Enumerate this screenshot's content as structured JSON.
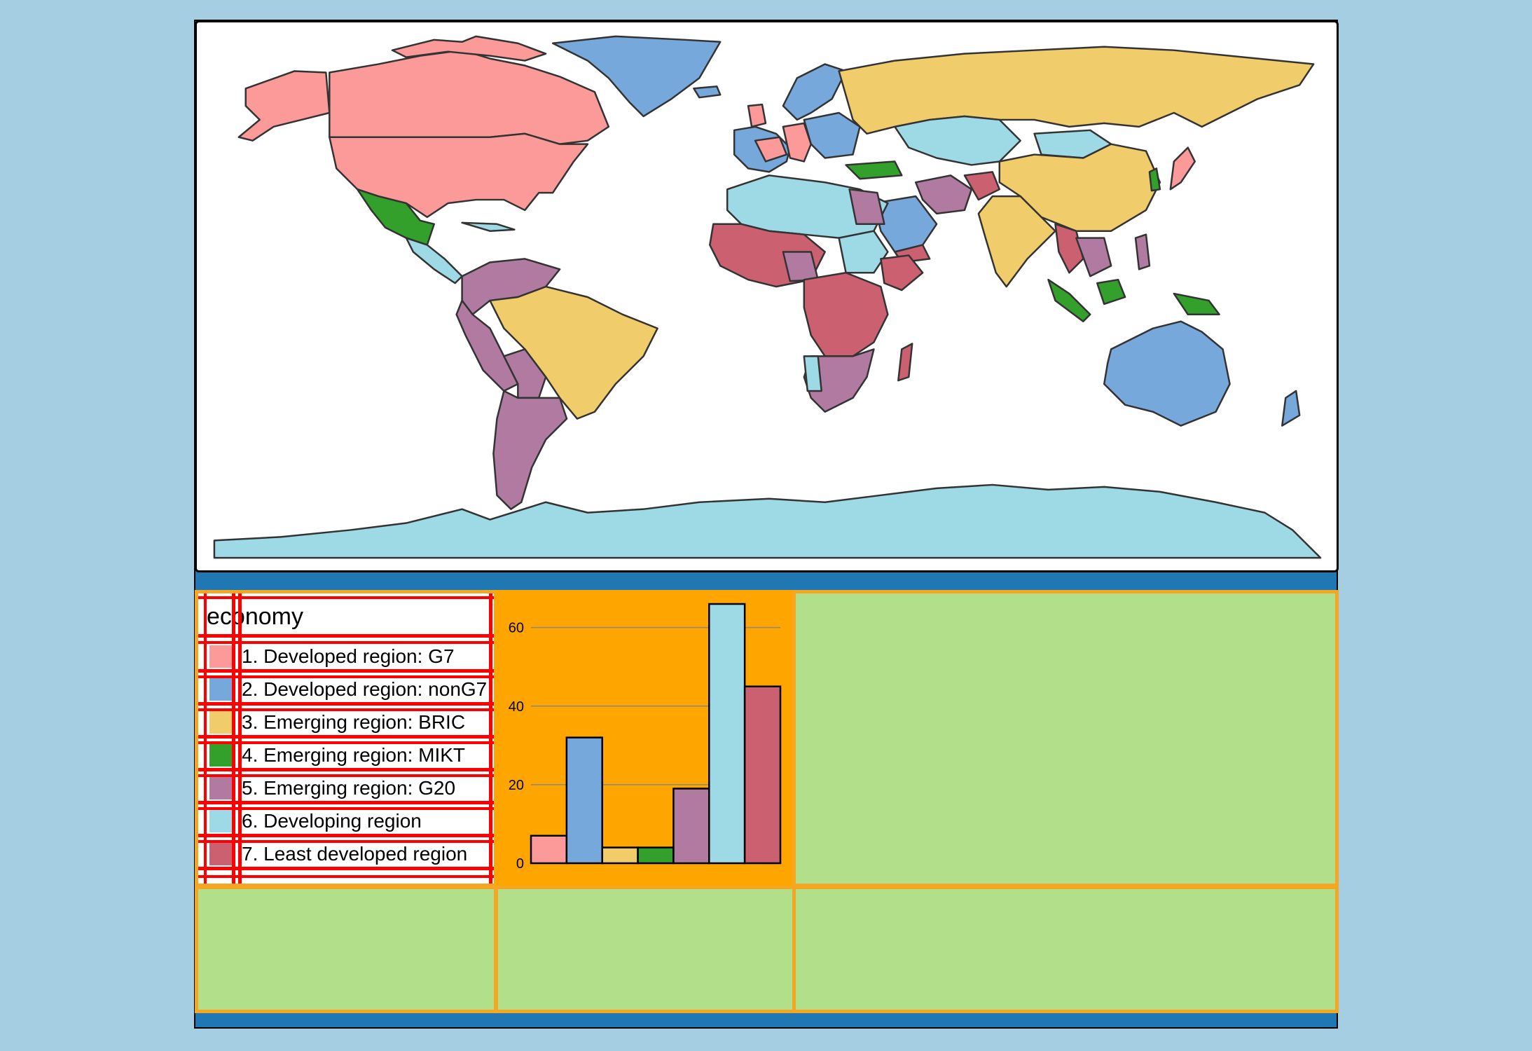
{
  "legend": {
    "title": "economy",
    "items": [
      {
        "label": "1. Developed region: G7",
        "color": "#fb9a99"
      },
      {
        "label": "2. Developed region: nonG7",
        "color": "#76a8dc"
      },
      {
        "label": "3. Emerging region: BRIC",
        "color": "#f0cc6a"
      },
      {
        "label": "4. Emerging region: MIKT",
        "color": "#33a02c"
      },
      {
        "label": "5. Emerging region: G20",
        "color": "#b07aa1"
      },
      {
        "label": "6. Developing region",
        "color": "#9edae5"
      },
      {
        "label": "7. Least developed region",
        "color": "#cb6070"
      }
    ]
  },
  "chart_data": {
    "type": "bar",
    "categories": [
      "1. Developed region: G7",
      "2. Developed region: nonG7",
      "3. Emerging region: BRIC",
      "4. Emerging region: MIKT",
      "5. Emerging region: G20",
      "6. Developing region",
      "7. Least developed region"
    ],
    "values": [
      7,
      32,
      4,
      4,
      19,
      66,
      45
    ],
    "colors": [
      "#fb9a99",
      "#76a8dc",
      "#f0cc6a",
      "#33a02c",
      "#b07aa1",
      "#9edae5",
      "#cb6070"
    ],
    "yticks": [
      "0",
      "20",
      "40",
      "60"
    ],
    "ylim": [
      0,
      66
    ],
    "grid": true,
    "title": "",
    "xlabel": "",
    "ylabel": ""
  },
  "colors": {
    "background": "#a6cee3",
    "frame": "#1f78b4",
    "cell_border": "#f5a623",
    "cell_fill": "#b2df8a",
    "chart_bg": "#ffa500"
  }
}
